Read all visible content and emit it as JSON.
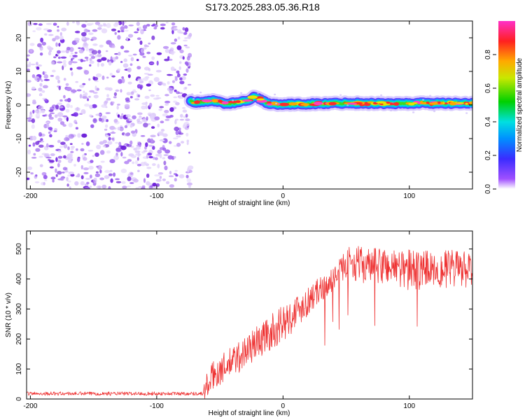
{
  "title": "S173.2025.283.05.36.R18",
  "colors": {
    "snr_line": "#ee3333",
    "noise": "#8a3ff0",
    "axis": "#000000",
    "background": "#ffffff"
  },
  "chart_data": [
    {
      "type": "heatmap",
      "title": "S173.2025.283.05.36.R18",
      "xlabel": "Height of straight line (km)",
      "ylabel": "Frequency (Hz)",
      "xlim": [
        -203,
        150
      ],
      "ylim": [
        -25,
        25
      ],
      "xticks": [
        -200,
        -100,
        0,
        100
      ],
      "yticks": [
        -20,
        -10,
        0,
        10,
        20
      ],
      "xtick_labels": [
        "-200",
        "-100",
        "0",
        "100"
      ],
      "ytick_labels": [
        "-20",
        "-10",
        "0",
        "10",
        "20"
      ],
      "noise_region_km": [
        -203,
        -73
      ],
      "signal_start_km": -73,
      "signal_track": {
        "x": [
          -73,
          -65,
          -55,
          -45,
          -38,
          -32,
          -27,
          -22,
          -18,
          -13,
          -8,
          -3,
          5,
          15,
          30,
          50,
          70,
          90,
          110,
          130,
          150
        ],
        "y": [
          1.0,
          0.8,
          1.3,
          0.4,
          0.7,
          1.0,
          1.6,
          2.6,
          1.6,
          0.7,
          0.3,
          0.2,
          0.2,
          0.3,
          0.4,
          0.6,
          0.5,
          0.4,
          0.6,
          0.5,
          0.6
        ]
      },
      "colorbar": {
        "label": "Normalized spectral amplitude",
        "range": [
          0,
          1
        ],
        "ticks": [
          0.0,
          0.2,
          0.4,
          0.6,
          0.8
        ],
        "tick_labels": [
          "0.0",
          "0.2",
          "0.4",
          "0.6",
          "0.8"
        ]
      }
    },
    {
      "type": "line",
      "xlabel": "Height of straight line (km)",
      "ylabel": "SNR (10 * v/v)",
      "xlim": [
        -203,
        150
      ],
      "ylim": [
        0,
        560
      ],
      "xticks": [
        -200,
        -100,
        0,
        100
      ],
      "yticks": [
        0,
        100,
        200,
        300,
        400,
        500
      ],
      "xtick_labels": [
        "-200",
        "-100",
        "0",
        "100"
      ],
      "ytick_labels": [
        "0",
        "100",
        "200",
        "300",
        "400",
        "500"
      ],
      "series": [
        {
          "name": "SNR",
          "envelope_x": [
            -203,
            -63,
            -62,
            -55,
            -45,
            -35,
            -25,
            -15,
            -5,
            5,
            15,
            25,
            35,
            42,
            50,
            60,
            70,
            80,
            90,
            100,
            110,
            120,
            130,
            140,
            150
          ],
          "mean_y": [
            18,
            18,
            30,
            80,
            110,
            140,
            175,
            205,
            235,
            270,
            310,
            350,
            380,
            410,
            455,
            450,
            440,
            445,
            440,
            430,
            430,
            440,
            430,
            435,
            420
          ],
          "spread": [
            6,
            6,
            45,
            50,
            50,
            55,
            55,
            60,
            60,
            60,
            55,
            45,
            40,
            35,
            50,
            60,
            60,
            65,
            65,
            70,
            70,
            65,
            65,
            65,
            60
          ]
        }
      ]
    }
  ]
}
